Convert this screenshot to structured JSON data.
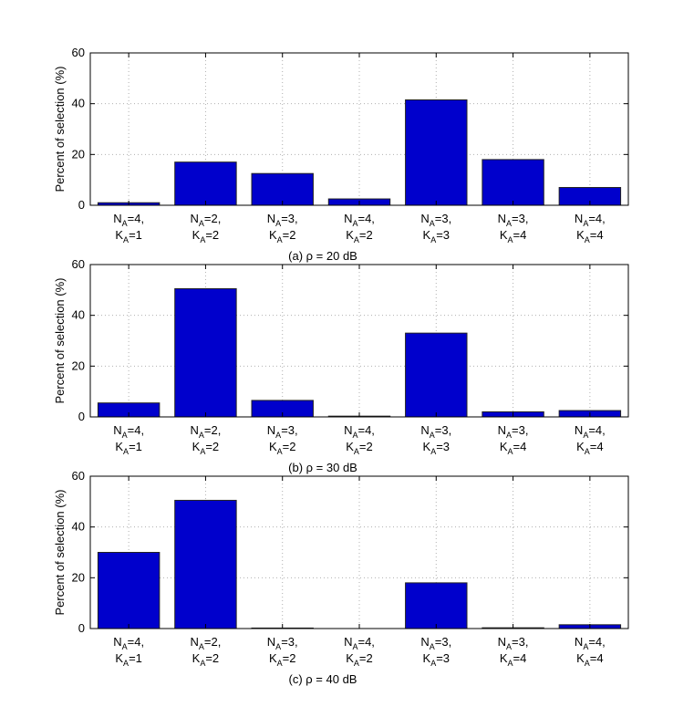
{
  "chart_data": [
    {
      "type": "bar",
      "caption": "(a)  ρ = 20 dB",
      "ylabel": "Percent of selection (%)",
      "ylim": [
        0,
        60
      ],
      "yticks": [
        "0",
        "20",
        "40",
        "60"
      ],
      "grid": "dotted",
      "categories": [
        {
          "l1": "N",
          "s1": "A",
          "v1": "=4,",
          "l2": "K",
          "s2": "A",
          "v2": "=1"
        },
        {
          "l1": "N",
          "s1": "A",
          "v1": "=2,",
          "l2": "K",
          "s2": "A",
          "v2": "=2"
        },
        {
          "l1": "N",
          "s1": "A",
          "v1": "=3,",
          "l2": "K",
          "s2": "A",
          "v2": "=2"
        },
        {
          "l1": "N",
          "s1": "A",
          "v1": "=4,",
          "l2": "K",
          "s2": "A",
          "v2": "=2"
        },
        {
          "l1": "N",
          "s1": "A",
          "v1": "=3,",
          "l2": "K",
          "s2": "A",
          "v2": "=3"
        },
        {
          "l1": "N",
          "s1": "A",
          "v1": "=3,",
          "l2": "K",
          "s2": "A",
          "v2": "=4"
        },
        {
          "l1": "N",
          "s1": "A",
          "v1": "=4,",
          "l2": "K",
          "s2": "A",
          "v2": "=4"
        }
      ],
      "values": [
        1,
        17,
        12.5,
        2.5,
        41.5,
        18,
        7
      ]
    },
    {
      "type": "bar",
      "caption": "(b)  ρ = 30 dB",
      "ylabel": "Percent of selection (%)",
      "ylim": [
        0,
        60
      ],
      "yticks": [
        "0",
        "20",
        "40",
        "60"
      ],
      "grid": "dotted",
      "categories": [
        {
          "l1": "N",
          "s1": "A",
          "v1": "=4,",
          "l2": "K",
          "s2": "A",
          "v2": "=1"
        },
        {
          "l1": "N",
          "s1": "A",
          "v1": "=2,",
          "l2": "K",
          "s2": "A",
          "v2": "=2"
        },
        {
          "l1": "N",
          "s1": "A",
          "v1": "=3,",
          "l2": "K",
          "s2": "A",
          "v2": "=2"
        },
        {
          "l1": "N",
          "s1": "A",
          "v1": "=4,",
          "l2": "K",
          "s2": "A",
          "v2": "=2"
        },
        {
          "l1": "N",
          "s1": "A",
          "v1": "=3,",
          "l2": "K",
          "s2": "A",
          "v2": "=3"
        },
        {
          "l1": "N",
          "s1": "A",
          "v1": "=3,",
          "l2": "K",
          "s2": "A",
          "v2": "=4"
        },
        {
          "l1": "N",
          "s1": "A",
          "v1": "=4,",
          "l2": "K",
          "s2": "A",
          "v2": "=4"
        }
      ],
      "values": [
        5.5,
        50.5,
        6.5,
        0.3,
        33,
        2,
        2.5
      ]
    },
    {
      "type": "bar",
      "caption": "(c)  ρ = 40 dB",
      "ylabel": "Percent of selection (%)",
      "ylim": [
        0,
        60
      ],
      "yticks": [
        "0",
        "20",
        "40",
        "60"
      ],
      "grid": "dotted",
      "categories": [
        {
          "l1": "N",
          "s1": "A",
          "v1": "=4,",
          "l2": "K",
          "s2": "A",
          "v2": "=1"
        },
        {
          "l1": "N",
          "s1": "A",
          "v1": "=2,",
          "l2": "K",
          "s2": "A",
          "v2": "=2"
        },
        {
          "l1": "N",
          "s1": "A",
          "v1": "=3,",
          "l2": "K",
          "s2": "A",
          "v2": "=2"
        },
        {
          "l1": "N",
          "s1": "A",
          "v1": "=4,",
          "l2": "K",
          "s2": "A",
          "v2": "=2"
        },
        {
          "l1": "N",
          "s1": "A",
          "v1": "=3,",
          "l2": "K",
          "s2": "A",
          "v2": "=3"
        },
        {
          "l1": "N",
          "s1": "A",
          "v1": "=3,",
          "l2": "K",
          "s2": "A",
          "v2": "=4"
        },
        {
          "l1": "N",
          "s1": "A",
          "v1": "=4,",
          "l2": "K",
          "s2": "A",
          "v2": "=4"
        }
      ],
      "values": [
        30,
        50.5,
        0.2,
        0,
        18,
        0.3,
        1.5
      ]
    }
  ],
  "colors": {
    "bar_fill": "#0000cc",
    "bar_edge": "#222222",
    "axis": "#000000",
    "grid": "#b0b0b0"
  }
}
